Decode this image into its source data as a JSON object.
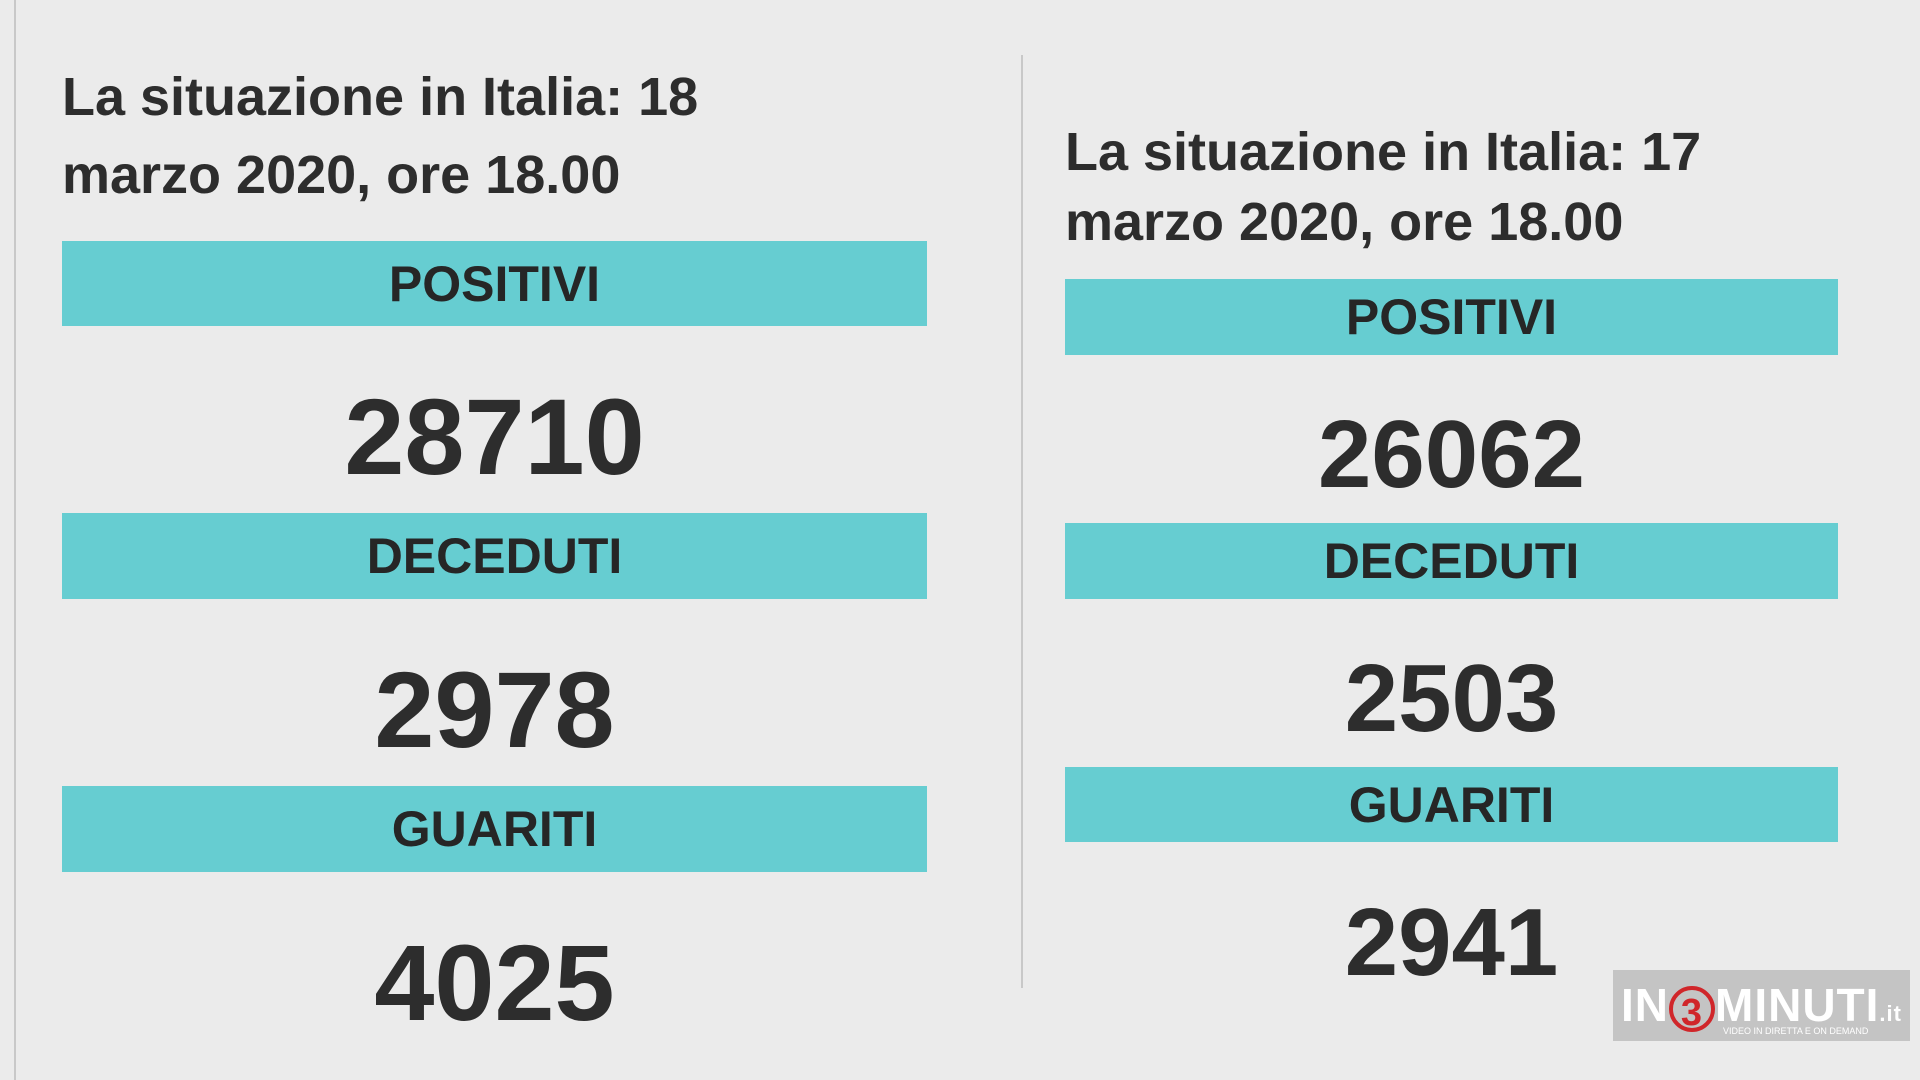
{
  "panels": [
    {
      "title_line1": "La situazione in Italia: 18",
      "title_line2": "marzo 2020, ore 18.00",
      "sections": [
        {
          "label": "POSITIVI",
          "value": 28710
        },
        {
          "label": "DECEDUTI",
          "value": 2978
        },
        {
          "label": "GUARITI",
          "value": 4025
        }
      ]
    },
    {
      "title_line1": "La situazione in Italia: 17",
      "title_line2": "marzo 2020, ore 18.00",
      "sections": [
        {
          "label": "POSITIVI",
          "value": 26062
        },
        {
          "label": "DECEDUTI",
          "value": 2503
        },
        {
          "label": "GUARITI",
          "value": 2941
        }
      ]
    }
  ],
  "logo": {
    "part1": "IN",
    "part2": "3",
    "part3": "MINUTI",
    "part4": ".it",
    "tagline": "VIDEO IN DIRETTA E ON DEMAND"
  }
}
